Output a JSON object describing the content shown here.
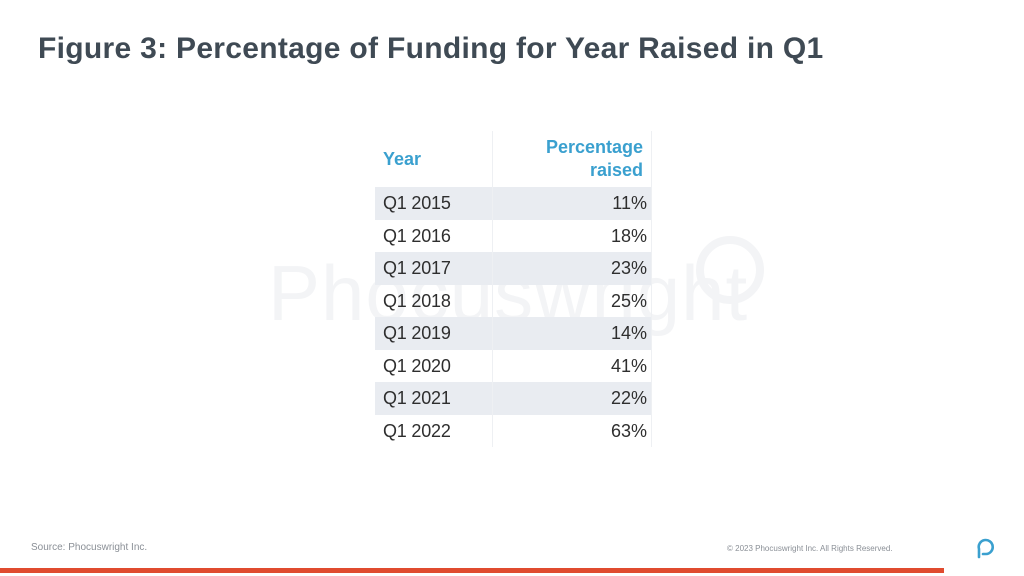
{
  "title": "Figure 3: Percentage of Funding for Year Raised in Q1",
  "watermark": "Phocuswright",
  "chart_data": {
    "type": "table",
    "columns": [
      "Year",
      "Percentage raised"
    ],
    "rows": [
      {
        "year": "Q1 2015",
        "value": "11%"
      },
      {
        "year": "Q1 2016",
        "value": "18%"
      },
      {
        "year": "Q1 2017",
        "value": "23%"
      },
      {
        "year": "Q1 2018",
        "value": "25%"
      },
      {
        "year": "Q1 2019",
        "value": "14%"
      },
      {
        "year": "Q1 2020",
        "value": "41%"
      },
      {
        "year": "Q1 2021",
        "value": "22%"
      },
      {
        "year": "Q1 2022",
        "value": "63%"
      }
    ],
    "header_lines": {
      "pct_line1": "Percentage",
      "pct_line2": "raised"
    }
  },
  "footer": {
    "source": "Source: Phocuswright Inc.",
    "copyright": "© 2023 Phocuswright Inc. All Rights Reserved."
  },
  "colors": {
    "title": "#3f4a54",
    "header_text": "#3aa0cf",
    "stripe": "#e9ecf1",
    "accent_bar": "#e04b2f",
    "logo": "#3aa0cf"
  },
  "icons": {
    "brand_logo": "phocuswright-p-icon"
  }
}
